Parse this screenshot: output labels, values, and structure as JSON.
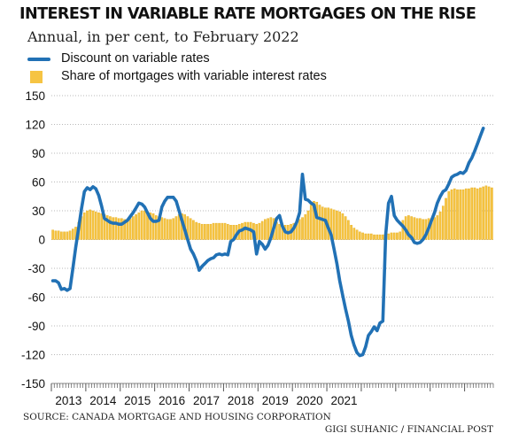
{
  "header": {
    "title": "INTEREST IN VARIABLE RATE MORTGAGES ON THE RISE",
    "subtitle": "Annual, in per cent, to February 2022"
  },
  "legend": {
    "line_label": "Discount on variable rates",
    "bar_label": "Share of mortgages with variable interest rates"
  },
  "footer": {
    "source": "SOURCE: CANADA MORTGAGE AND HOUSING CORPORATION",
    "credit": "GIGI SUHANIC  / FINANCIAL POST"
  },
  "colors": {
    "line": "#2171b5",
    "bar": "#f6c443",
    "bar_edge": "#e6ad1c",
    "grid": "#b8b8b8"
  },
  "chart_data": {
    "type": "bar",
    "grid": "horizontal-dotted",
    "legend_position": "top-left",
    "ylim": [
      -150,
      150
    ],
    "yticks": [
      150,
      120,
      90,
      60,
      30,
      0,
      -30,
      -60,
      -90,
      -120,
      -150
    ],
    "x_start": "2013-01",
    "x_end": "2022-02",
    "year_labels": [
      "2013",
      "2014",
      "2015",
      "2016",
      "2017",
      "2018",
      "2019",
      "2020",
      "2021"
    ],
    "series": [
      {
        "name": "Share of mortgages with variable interest rates",
        "kind": "bar",
        "values": [
          10,
          9,
          9,
          8,
          8,
          8,
          9,
          11,
          13,
          18,
          24,
          28,
          30,
          31,
          30,
          29,
          28,
          27,
          26,
          25,
          24,
          23,
          23,
          22,
          22,
          21,
          21,
          22,
          24,
          26,
          28,
          30,
          30,
          29,
          28,
          27,
          25,
          24,
          23,
          22,
          21,
          21,
          22,
          24,
          26,
          27,
          26,
          24,
          22,
          20,
          18,
          17,
          16,
          16,
          16,
          16,
          17,
          17,
          17,
          17,
          17,
          16,
          15,
          15,
          15,
          16,
          17,
          18,
          18,
          18,
          17,
          16,
          17,
          19,
          21,
          22,
          23,
          22,
          18,
          16,
          15,
          15,
          15,
          16,
          17,
          19,
          21,
          23,
          26,
          30,
          36,
          40,
          39,
          36,
          34,
          33,
          33,
          32,
          31,
          30,
          29,
          27,
          24,
          20,
          15,
          12,
          10,
          8,
          7,
          6,
          6,
          6,
          5,
          5,
          5,
          5,
          6,
          6,
          7,
          7,
          7,
          8,
          20,
          24,
          25,
          24,
          23,
          22,
          22,
          21,
          21,
          22,
          22,
          23,
          25,
          29,
          35,
          43,
          50,
          52,
          53,
          52,
          52,
          52,
          53,
          53,
          54,
          54,
          53,
          54,
          55,
          56,
          55,
          54
        ]
      },
      {
        "name": "Discount on variable rates",
        "kind": "line",
        "values": [
          -43,
          -43,
          -45,
          -52,
          -51,
          -53,
          -51,
          -30,
          -8,
          12,
          32,
          50,
          54,
          52,
          55,
          53,
          46,
          35,
          22,
          20,
          18,
          17,
          17,
          16,
          16,
          18,
          20,
          24,
          28,
          33,
          38,
          37,
          34,
          28,
          22,
          19,
          19,
          20,
          34,
          40,
          44,
          44,
          44,
          40,
          30,
          20,
          10,
          0,
          -10,
          -15,
          -22,
          -32,
          -28,
          -25,
          -22,
          -20,
          -19,
          -16,
          -15,
          -16,
          -15,
          -16,
          -2,
          0,
          5,
          9,
          10,
          12,
          11,
          10,
          8,
          -15,
          -2,
          -5,
          -10,
          -6,
          2,
          12,
          22,
          25,
          14,
          8,
          7,
          8,
          12,
          18,
          28,
          68,
          42,
          41,
          38,
          36,
          23,
          22,
          21,
          20,
          12,
          5,
          -10,
          -25,
          -43,
          -58,
          -72,
          -85,
          -100,
          -110,
          -118,
          -121,
          -120,
          -112,
          -100,
          -96,
          -91,
          -95,
          -87,
          -85,
          5,
          38,
          45,
          25,
          20,
          17,
          14,
          10,
          5,
          2,
          -3,
          -4,
          -3,
          0,
          5,
          12,
          20,
          28,
          38,
          45,
          50,
          52,
          58,
          65,
          67,
          68,
          70,
          69,
          72,
          80,
          85,
          92,
          100,
          108,
          116
        ]
      }
    ]
  }
}
